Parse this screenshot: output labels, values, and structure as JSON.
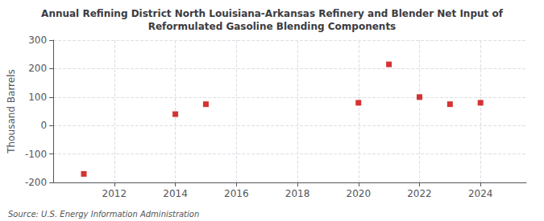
{
  "chart_data": {
    "type": "scatter",
    "title": "Annual Refining District North Louisiana-Arkansas Refinery and Blender Net Input of\nReformulated Gasoline Blending Components",
    "ylabel": "Thousand Barrels",
    "annotations": [
      "Source: U.S. Energy Information Administration"
    ],
    "x": [
      2011,
      2014,
      2015,
      2020,
      2021,
      2022,
      2023,
      2024
    ],
    "values": [
      -170,
      40,
      75,
      80,
      215,
      100,
      75,
      80
    ],
    "color": "#cc0000",
    "marker": "square",
    "xlim": [
      2010.0,
      2025.5
    ],
    "ylim": [
      -200,
      300
    ],
    "xticks": [
      2012,
      2014,
      2016,
      2018,
      2020,
      2022,
      2024
    ],
    "yticks": [
      -200,
      -100,
      0,
      100,
      200,
      300
    ],
    "grid": true
  }
}
